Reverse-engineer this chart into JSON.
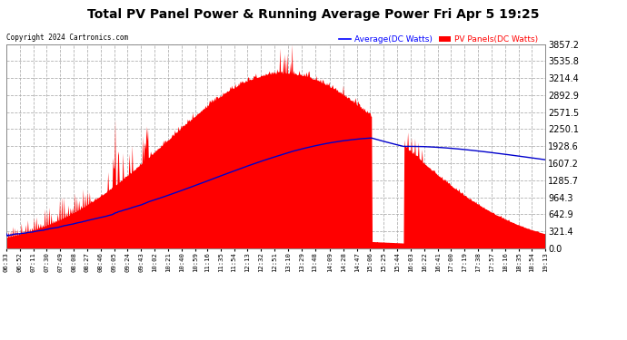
{
  "title": "Total PV Panel Power & Running Average Power Fri Apr 5 19:25",
  "copyright": "Copyright 2024 Cartronics.com",
  "legend_avg": "Average(DC Watts)",
  "legend_pv": "PV Panels(DC Watts)",
  "y_max": 3857.2,
  "y_ticks": [
    0.0,
    321.4,
    642.9,
    964.3,
    1285.7,
    1607.2,
    1928.6,
    2250.1,
    2571.5,
    2892.9,
    3214.4,
    3535.8,
    3857.2
  ],
  "plot_bg_color": "#ffffff",
  "grid_color": "#aaaaaa",
  "pv_color": "#ff0000",
  "avg_color": "#0000cc",
  "fig_bg_color": "#ffffff",
  "title_color": "#000000",
  "avg_legend_color": "#0000ff",
  "pv_legend_color": "#ff0000",
  "x_labels": [
    "06:33",
    "06:52",
    "07:11",
    "07:30",
    "07:49",
    "08:08",
    "08:27",
    "08:46",
    "09:05",
    "09:24",
    "09:43",
    "10:02",
    "10:21",
    "10:40",
    "10:59",
    "11:16",
    "11:35",
    "11:54",
    "12:13",
    "12:32",
    "12:51",
    "13:10",
    "13:29",
    "13:48",
    "14:09",
    "14:28",
    "14:47",
    "15:06",
    "15:25",
    "15:44",
    "16:03",
    "16:22",
    "16:41",
    "17:00",
    "17:19",
    "17:38",
    "17:57",
    "18:16",
    "18:35",
    "18:54",
    "19:13"
  ]
}
